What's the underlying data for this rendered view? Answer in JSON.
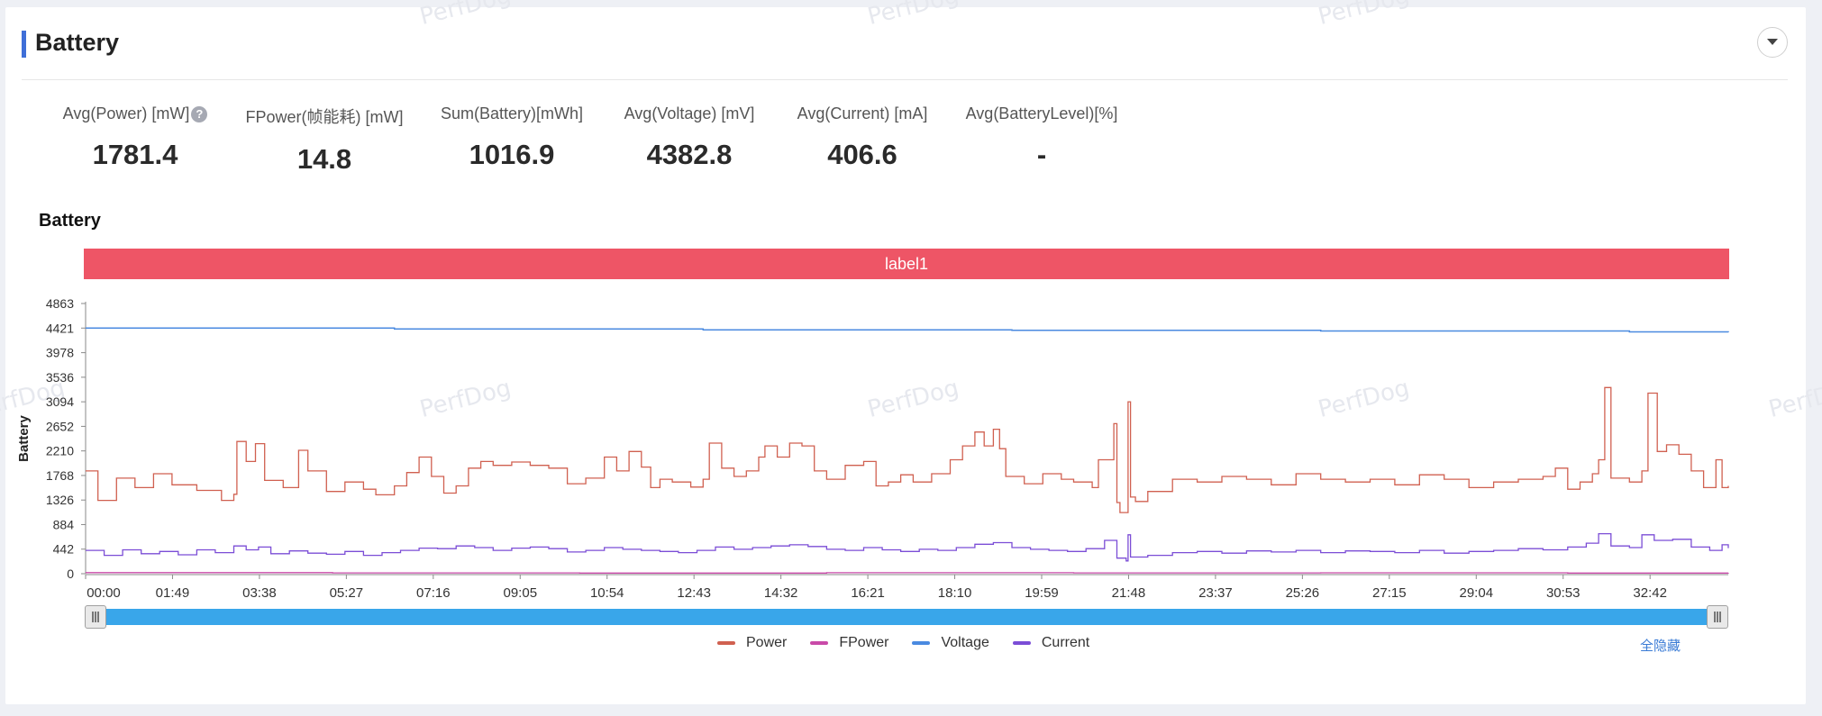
{
  "header": {
    "title": "Battery"
  },
  "watermark": "PerfDog",
  "metrics": [
    {
      "label": "Avg(Power) [mW]",
      "value": "1781.4",
      "help": "?"
    },
    {
      "label": "FPower(帧能耗) [mW]",
      "value": "14.8"
    },
    {
      "label": "Sum(Battery)[mWh]",
      "value": "1016.9"
    },
    {
      "label": "Avg(Voltage) [mV]",
      "value": "4382.8"
    },
    {
      "label": "Avg(Current) [mA]",
      "value": "406.6"
    },
    {
      "label": "Avg(BatteryLevel)[%]",
      "value": "-"
    }
  ],
  "chart_title": "Battery",
  "label_band": "label1",
  "legend_controls": {
    "hide_all": "全隐藏"
  },
  "chart_data": {
    "type": "line",
    "ylabel": "Battery",
    "y_ticks": [
      "0",
      "442",
      "884",
      "1326",
      "1768",
      "2210",
      "2652",
      "3094",
      "3536",
      "3978",
      "4421",
      "4863"
    ],
    "ylim": [
      0,
      4863
    ],
    "x_ticks": [
      "00:00",
      "01:49",
      "03:38",
      "05:27",
      "07:16",
      "09:05",
      "10:54",
      "12:43",
      "14:32",
      "16:21",
      "18:10",
      "19:59",
      "21:48",
      "23:37",
      "25:26",
      "27:15",
      "29:04",
      "30:53",
      "32:42"
    ],
    "x_range_seconds": [
      0,
      2050
    ],
    "legend_position": "bottom",
    "series": [
      {
        "name": "Power",
        "color": "#d06050",
        "points": [
          [
            0,
            1850
          ],
          [
            20,
            1320
          ],
          [
            50,
            1720
          ],
          [
            80,
            1550
          ],
          [
            110,
            1800
          ],
          [
            140,
            1600
          ],
          [
            180,
            1500
          ],
          [
            220,
            1320
          ],
          [
            240,
            1430
          ],
          [
            245,
            2380
          ],
          [
            260,
            2020
          ],
          [
            275,
            2340
          ],
          [
            290,
            1680
          ],
          [
            320,
            1550
          ],
          [
            345,
            2220
          ],
          [
            360,
            1850
          ],
          [
            390,
            1480
          ],
          [
            420,
            1650
          ],
          [
            450,
            1520
          ],
          [
            470,
            1420
          ],
          [
            500,
            1580
          ],
          [
            520,
            1820
          ],
          [
            540,
            2100
          ],
          [
            560,
            1750
          ],
          [
            580,
            1450
          ],
          [
            600,
            1580
          ],
          [
            620,
            1900
          ],
          [
            640,
            2020
          ],
          [
            660,
            1950
          ],
          [
            690,
            2010
          ],
          [
            720,
            1950
          ],
          [
            750,
            1900
          ],
          [
            780,
            1620
          ],
          [
            810,
            1720
          ],
          [
            840,
            2100
          ],
          [
            860,
            1850
          ],
          [
            880,
            2200
          ],
          [
            900,
            1920
          ],
          [
            915,
            1550
          ],
          [
            930,
            1700
          ],
          [
            950,
            1650
          ],
          [
            980,
            1560
          ],
          [
            1000,
            1700
          ],
          [
            1010,
            2350
          ],
          [
            1030,
            1900
          ],
          [
            1050,
            1750
          ],
          [
            1070,
            1850
          ],
          [
            1090,
            2100
          ],
          [
            1100,
            2300
          ],
          [
            1120,
            2100
          ],
          [
            1140,
            2350
          ],
          [
            1160,
            2300
          ],
          [
            1180,
            1850
          ],
          [
            1200,
            1700
          ],
          [
            1230,
            1950
          ],
          [
            1260,
            2020
          ],
          [
            1280,
            1580
          ],
          [
            1300,
            1650
          ],
          [
            1320,
            1780
          ],
          [
            1340,
            1650
          ],
          [
            1370,
            1800
          ],
          [
            1400,
            2050
          ],
          [
            1420,
            2300
          ],
          [
            1440,
            2550
          ],
          [
            1455,
            2300
          ],
          [
            1470,
            2600
          ],
          [
            1480,
            2250
          ],
          [
            1490,
            1750
          ],
          [
            1520,
            1620
          ],
          [
            1550,
            1800
          ],
          [
            1580,
            1700
          ],
          [
            1600,
            1650
          ],
          [
            1630,
            1550
          ],
          [
            1640,
            2050
          ],
          [
            1665,
            2700
          ],
          [
            1670,
            1280
          ],
          [
            1675,
            1100
          ],
          [
            1685,
            1100
          ],
          [
            1688,
            3094
          ],
          [
            1692,
            1380
          ],
          [
            1700,
            1300
          ],
          [
            1720,
            1480
          ],
          [
            1760,
            1700
          ],
          [
            1800,
            1650
          ],
          [
            1840,
            1750
          ],
          [
            1880,
            1700
          ],
          [
            1920,
            1600
          ],
          [
            1960,
            1800
          ],
          [
            2000,
            1700
          ],
          [
            2040,
            1650
          ],
          [
            2080,
            1700
          ],
          [
            2120,
            1600
          ],
          [
            2160,
            1780
          ],
          [
            2200,
            1700
          ],
          [
            2240,
            1550
          ],
          [
            2280,
            1650
          ],
          [
            2320,
            1700
          ],
          [
            2360,
            1750
          ],
          [
            2380,
            1900
          ],
          [
            2400,
            1520
          ],
          [
            2420,
            1650
          ],
          [
            2440,
            1800
          ],
          [
            2450,
            2050
          ],
          [
            2460,
            3350
          ],
          [
            2470,
            1720
          ],
          [
            2500,
            1650
          ],
          [
            2520,
            1850
          ],
          [
            2530,
            3250
          ],
          [
            2545,
            2200
          ],
          [
            2560,
            2320
          ],
          [
            2580,
            2150
          ],
          [
            2600,
            1850
          ],
          [
            2620,
            1550
          ],
          [
            2640,
            2050
          ],
          [
            2650,
            1550
          ],
          [
            2660,
            1580
          ]
        ]
      },
      {
        "name": "FPower",
        "color": "#c94aa8",
        "points": [
          [
            0,
            20
          ],
          [
            400,
            15
          ],
          [
            800,
            12
          ],
          [
            1200,
            18
          ],
          [
            1600,
            14
          ],
          [
            2000,
            16
          ],
          [
            2400,
            12
          ],
          [
            2660,
            15
          ]
        ]
      },
      {
        "name": "Voltage",
        "color": "#4a8ae0",
        "points": [
          [
            0,
            4421
          ],
          [
            500,
            4405
          ],
          [
            1000,
            4390
          ],
          [
            1500,
            4380
          ],
          [
            2000,
            4368
          ],
          [
            2500,
            4352
          ],
          [
            2660,
            4345
          ]
        ]
      },
      {
        "name": "Current",
        "color": "#7b4dd6",
        "points": [
          [
            0,
            420
          ],
          [
            30,
            330
          ],
          [
            60,
            430
          ],
          [
            90,
            360
          ],
          [
            120,
            400
          ],
          [
            150,
            340
          ],
          [
            180,
            430
          ],
          [
            210,
            380
          ],
          [
            240,
            500
          ],
          [
            260,
            430
          ],
          [
            280,
            480
          ],
          [
            300,
            360
          ],
          [
            330,
            410
          ],
          [
            360,
            370
          ],
          [
            390,
            350
          ],
          [
            420,
            400
          ],
          [
            450,
            330
          ],
          [
            480,
            380
          ],
          [
            510,
            420
          ],
          [
            540,
            460
          ],
          [
            570,
            450
          ],
          [
            600,
            500
          ],
          [
            630,
            470
          ],
          [
            660,
            420
          ],
          [
            690,
            460
          ],
          [
            720,
            480
          ],
          [
            750,
            450
          ],
          [
            780,
            390
          ],
          [
            810,
            420
          ],
          [
            840,
            470
          ],
          [
            870,
            440
          ],
          [
            900,
            420
          ],
          [
            930,
            400
          ],
          [
            960,
            380
          ],
          [
            990,
            420
          ],
          [
            1020,
            480
          ],
          [
            1050,
            440
          ],
          [
            1080,
            470
          ],
          [
            1110,
            500
          ],
          [
            1140,
            520
          ],
          [
            1170,
            490
          ],
          [
            1200,
            440
          ],
          [
            1230,
            420
          ],
          [
            1260,
            470
          ],
          [
            1290,
            430
          ],
          [
            1320,
            400
          ],
          [
            1350,
            440
          ],
          [
            1380,
            420
          ],
          [
            1410,
            470
          ],
          [
            1440,
            530
          ],
          [
            1470,
            560
          ],
          [
            1500,
            470
          ],
          [
            1530,
            440
          ],
          [
            1560,
            420
          ],
          [
            1590,
            400
          ],
          [
            1620,
            450
          ],
          [
            1650,
            600
          ],
          [
            1670,
            280
          ],
          [
            1685,
            230
          ],
          [
            1688,
            700
          ],
          [
            1692,
            300
          ],
          [
            1720,
            330
          ],
          [
            1760,
            380
          ],
          [
            1800,
            400
          ],
          [
            1840,
            370
          ],
          [
            1880,
            410
          ],
          [
            1920,
            390
          ],
          [
            1960,
            420
          ],
          [
            2000,
            380
          ],
          [
            2040,
            410
          ],
          [
            2080,
            400
          ],
          [
            2120,
            380
          ],
          [
            2160,
            420
          ],
          [
            2200,
            370
          ],
          [
            2240,
            400
          ],
          [
            2280,
            420
          ],
          [
            2320,
            450
          ],
          [
            2360,
            430
          ],
          [
            2400,
            480
          ],
          [
            2430,
            550
          ],
          [
            2450,
            720
          ],
          [
            2470,
            500
          ],
          [
            2500,
            470
          ],
          [
            2520,
            700
          ],
          [
            2540,
            600
          ],
          [
            2570,
            620
          ],
          [
            2600,
            480
          ],
          [
            2630,
            420
          ],
          [
            2650,
            520
          ],
          [
            2660,
            460
          ]
        ]
      }
    ]
  }
}
